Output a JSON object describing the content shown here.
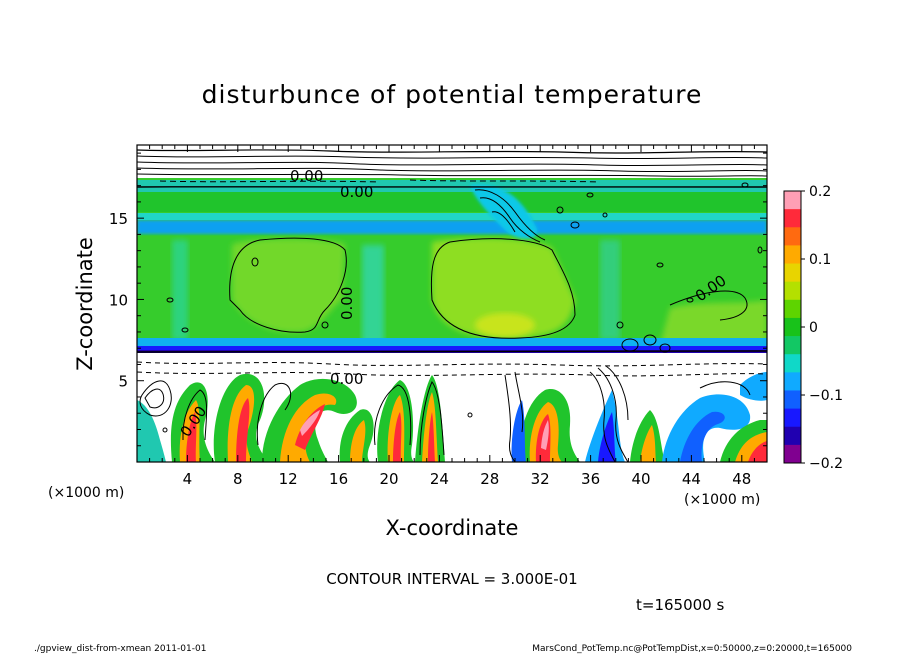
{
  "chart_data": {
    "type": "heatmap",
    "title": "disturbunce of potential temperature",
    "xlabel": "X-coordinate",
    "ylabel": "Z-coordinate",
    "x_unit": "(×1000 m)",
    "z_unit": "(×1000 m)",
    "xlim": [
      0,
      50
    ],
    "ylim": [
      0,
      19.5
    ],
    "x_ticks": [
      "4",
      "8",
      "12",
      "16",
      "20",
      "24",
      "28",
      "32",
      "36",
      "40",
      "44",
      "48"
    ],
    "y_ticks": [
      "5",
      "10",
      "15"
    ],
    "colorbar": {
      "range": [
        -0.2,
        0.2
      ],
      "tick_labels": [
        "0.2",
        "0.1",
        "0",
        "−0.1",
        "−0.2"
      ],
      "colors": [
        "#ff9fb5",
        "#ff2a3a",
        "#ff6a10",
        "#ffaa00",
        "#e8d400",
        "#b4e000",
        "#5ed400",
        "#18c21a",
        "#12c864",
        "#10d8c8",
        "#10aaff",
        "#1060ff",
        "#1818ff",
        "#2000b0",
        "#800090"
      ]
    },
    "contour_labels": [
      "0.00",
      "0.00",
      "0.00",
      "0.00",
      "0.00",
      "0.00"
    ],
    "contour_interval_text": "CONTOUR INTERVAL = 3.000E-01",
    "time_text": "t=165000 s",
    "footer_left": "./gpview_dist-from-xmean  2011-01-01",
    "footer_right": "MarsCond_PotTemp.nc@PotTempDist,x=0:50000,z=0:20000,t=165000"
  }
}
